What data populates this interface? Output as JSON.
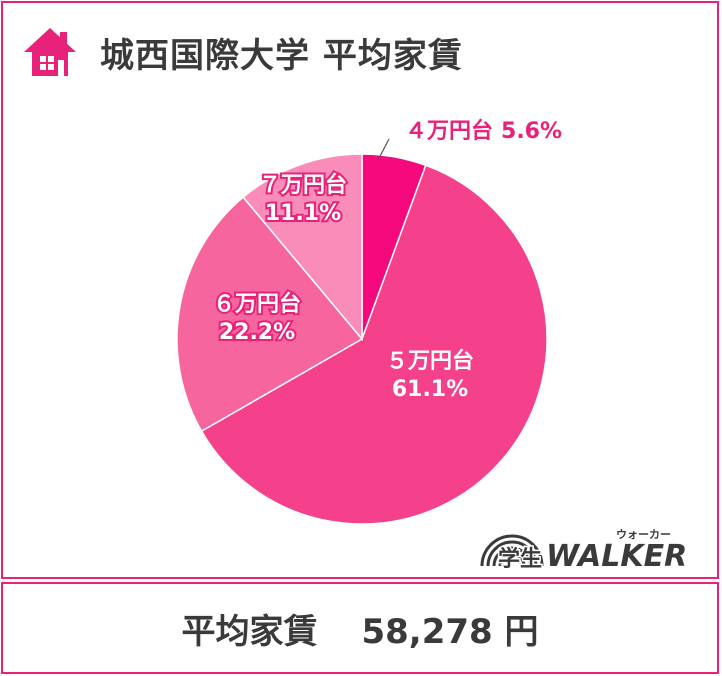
{
  "header": {
    "title": "城西国際大学 平均家賃",
    "icon": "house-icon"
  },
  "footer": {
    "label": "平均家賃",
    "value": "58,278 円"
  },
  "logo": {
    "text_main": "学生",
    "text_brand": "WALKER",
    "text_ruby": "ウォーカー"
  },
  "colors": {
    "accent": "#e8217a",
    "slice_4": "#f5097c",
    "slice_5": "#f5408b",
    "slice_6": "#f7659f",
    "slice_7": "#f98cb8"
  },
  "chart_data": {
    "type": "pie",
    "title": "城西国際大学 平均家賃",
    "slices": [
      {
        "label": "４万円台",
        "value": 5.6,
        "value_text": "5.6%"
      },
      {
        "label": "５万円台",
        "value": 61.1,
        "value_text": "61.1%"
      },
      {
        "label": "６万円台",
        "value": 22.2,
        "value_text": "22.2%"
      },
      {
        "label": "７万円台",
        "value": 11.1,
        "value_text": "11.1%"
      }
    ]
  }
}
